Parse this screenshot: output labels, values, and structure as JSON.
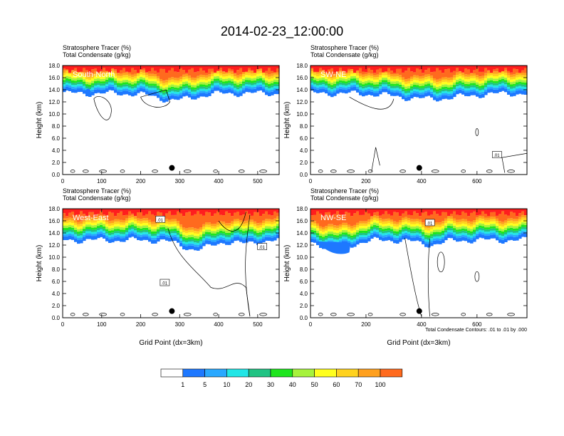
{
  "title": "2014-02-23_12:00:00",
  "colors": [
    "#ffffff",
    "#1e78ff",
    "#29a8ff",
    "#22e6e6",
    "#21c383",
    "#1ee51e",
    "#a6f23c",
    "#ffff1e",
    "#ffd21e",
    "#ffa01e",
    "#ff6a1e",
    "#ff1e1e"
  ],
  "chart_data": [
    {
      "type": "heatmap",
      "label_left_1": "Stratosphere Tracer   (%)",
      "label_left_2": "Total Condensate   (g/kg)",
      "panel_label": "South-North",
      "ylabel": "Height (km)",
      "xlabel": "",
      "xlim": [
        0,
        555
      ],
      "ylim": [
        0,
        18
      ],
      "xticks": [
        0,
        100,
        200,
        300,
        400,
        500
      ],
      "yticks": [
        "0.0",
        "2.0",
        "4.0",
        "6.0",
        "8.0",
        "10.0",
        "12.0",
        "14.0",
        "16.0",
        "18.0"
      ],
      "marker_x": 280,
      "contour_labels": []
    },
    {
      "type": "heatmap",
      "label_left_1": "Stratosphere Tracer   (%)",
      "label_left_2": "Total Condensate   (g/kg)",
      "panel_label": "SW-NE",
      "ylabel": "Height (km)",
      "xlabel": "",
      "xlim": [
        0,
        780
      ],
      "ylim": [
        0,
        18
      ],
      "xticks": [
        0,
        200,
        400,
        600
      ],
      "yticks": [
        "0.0",
        "2.0",
        "4.0",
        "6.0",
        "8.0",
        "10.0",
        "12.0",
        "14.0",
        "16.0",
        "18.0"
      ],
      "marker_x": 392,
      "contour_labels": [
        ".01"
      ]
    },
    {
      "type": "heatmap",
      "label_left_1": "Stratosphere Tracer   (%)",
      "label_left_2": "Total Condensate   (g/kg)",
      "panel_label": "West-East",
      "ylabel": "Height (km)",
      "xlabel": "Grid Point (dx=3km)",
      "xlim": [
        0,
        555
      ],
      "ylim": [
        0,
        18
      ],
      "xticks": [
        0,
        100,
        200,
        300,
        400,
        500
      ],
      "yticks": [
        "0.0",
        "2.0",
        "4.0",
        "6.0",
        "8.0",
        "10.0",
        "12.0",
        "14.0",
        "16.0",
        "18.0"
      ],
      "marker_x": 280,
      "contour_labels": [
        ".01",
        ".01",
        ".01"
      ]
    },
    {
      "type": "heatmap",
      "label_left_1": "Stratosphere Tracer   (%)",
      "label_left_2": "Total Condensate   (g/kg)",
      "panel_label": "NW-SE",
      "ylabel": "Height (km)",
      "xlabel": "Grid Point (dx=3km)",
      "xlim": [
        0,
        780
      ],
      "ylim": [
        0,
        18
      ],
      "xticks": [
        0,
        200,
        400,
        600
      ],
      "yticks": [
        "0.0",
        "2.0",
        "4.0",
        "6.0",
        "8.0",
        "10.0",
        "12.0",
        "14.0",
        "16.0",
        "18.0"
      ],
      "marker_x": 392,
      "contour_labels": [
        ".01"
      ],
      "footnote": "Total Condensate Contours: .01 to .01 by .000"
    }
  ],
  "units_right": "(%)",
  "units_right_2": "(g/kg)",
  "colorbar": {
    "labels": [
      "1",
      "5",
      "10",
      "20",
      "30",
      "40",
      "50",
      "60",
      "70",
      "100"
    ]
  }
}
